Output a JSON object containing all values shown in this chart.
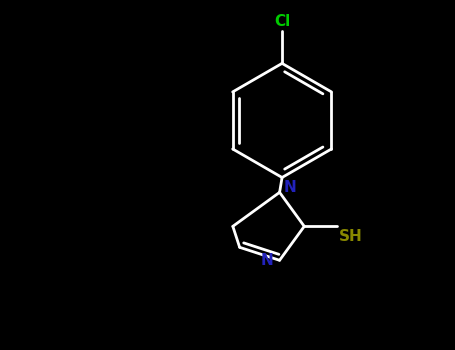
{
  "background_color": "#000000",
  "bond_color_white": "#ffffff",
  "cl_color": "#00cc00",
  "n_color": "#2222bb",
  "sh_color": "#888800",
  "bond_lw": 2.0,
  "figsize": [
    4.55,
    3.5
  ],
  "dpi": 100,
  "xlim": [
    0,
    9
  ],
  "ylim": [
    0,
    7
  ]
}
